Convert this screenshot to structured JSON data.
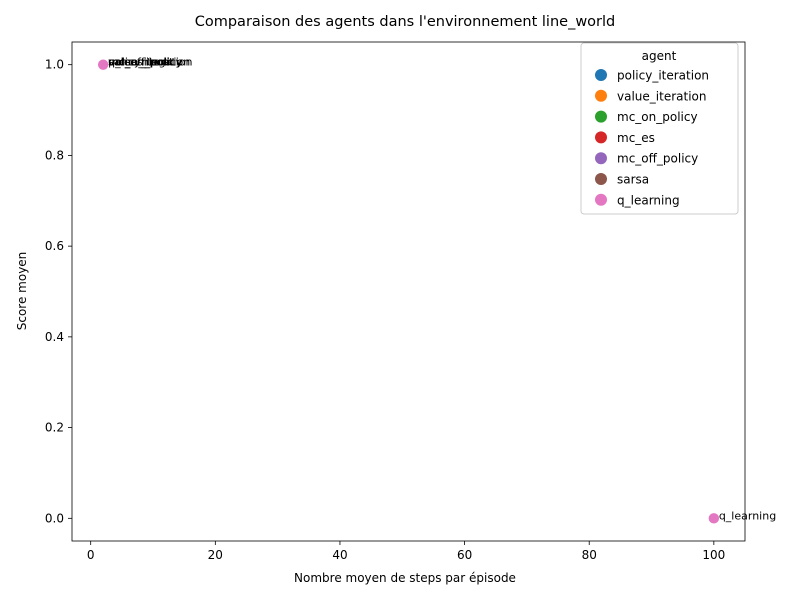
{
  "chart_data": {
    "type": "scatter",
    "title": "Comparaison des agents dans l'environnement line_world",
    "xlabel": "Nombre moyen de steps par épisode",
    "ylabel": "Score moyen",
    "xlim": [
      -3,
      105
    ],
    "ylim": [
      -0.05,
      1.05
    ],
    "xticks": [
      0,
      20,
      40,
      60,
      80,
      100
    ],
    "yticks": [
      0.0,
      0.2,
      0.4,
      0.6,
      0.8,
      1.0
    ],
    "ytick_labels": [
      "0.0",
      "0.2",
      "0.4",
      "0.6",
      "0.8",
      "1.0"
    ],
    "grid": false,
    "legend": {
      "title": "agent",
      "position": "top-right"
    },
    "series": [
      {
        "name": "policy_iteration",
        "color": "#1f77b4",
        "points": [
          {
            "x": 2,
            "y": 1.0
          }
        ]
      },
      {
        "name": "value_iteration",
        "color": "#ff7f0e",
        "points": [
          {
            "x": 2,
            "y": 1.0
          }
        ]
      },
      {
        "name": "mc_on_policy",
        "color": "#2ca02c",
        "points": [
          {
            "x": 2,
            "y": 1.0
          }
        ]
      },
      {
        "name": "mc_es",
        "color": "#d62728",
        "points": [
          {
            "x": 2,
            "y": 1.0
          }
        ]
      },
      {
        "name": "mc_off_policy",
        "color": "#9467bd",
        "points": [
          {
            "x": 2,
            "y": 1.0
          }
        ]
      },
      {
        "name": "sarsa",
        "color": "#8c564b",
        "points": [
          {
            "x": 2,
            "y": 1.0
          }
        ]
      },
      {
        "name": "q_learning",
        "color": "#e377c2",
        "points": [
          {
            "x": 2,
            "y": 1.0
          },
          {
            "x": 100,
            "y": 0.0
          }
        ]
      }
    ]
  }
}
